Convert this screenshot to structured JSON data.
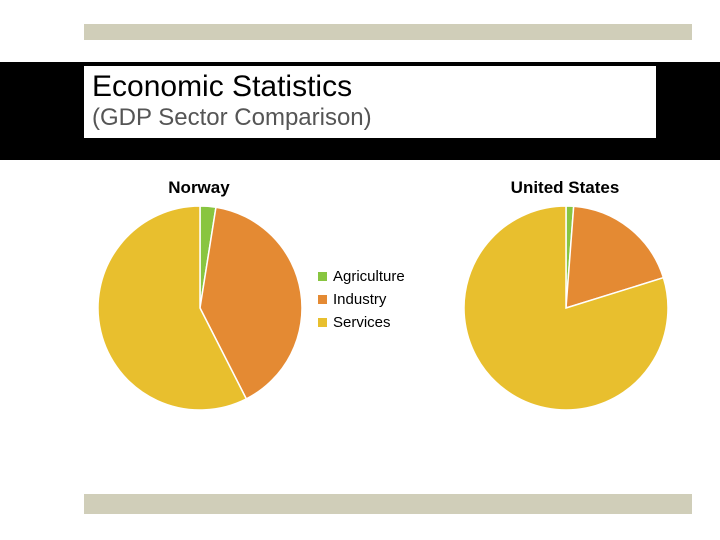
{
  "title": {
    "main": "Economic Statistics",
    "sub": "(GDP Sector Comparison)"
  },
  "legend": {
    "items": [
      {
        "label": "Agriculture",
        "color": "#88c540"
      },
      {
        "label": "Industry",
        "color": "#e48a33"
      },
      {
        "label": "Services",
        "color": "#e8bf2e"
      }
    ]
  },
  "charts": {
    "norway": {
      "title": "Norway",
      "type": "pie",
      "radius": 102,
      "sectors": [
        {
          "label": "Agriculture",
          "value": 2.5,
          "color": "#88c540"
        },
        {
          "label": "Industry",
          "value": 40.0,
          "color": "#e48a33"
        },
        {
          "label": "Services",
          "value": 57.5,
          "color": "#e8bf2e"
        }
      ],
      "stroke": "#ffffff",
      "stroke_width": 1.5
    },
    "united_states": {
      "title": "United States",
      "type": "pie",
      "radius": 102,
      "sectors": [
        {
          "label": "Agriculture",
          "value": 1.2,
          "color": "#88c540"
        },
        {
          "label": "Industry",
          "value": 19.0,
          "color": "#e48a33"
        },
        {
          "label": "Services",
          "value": 79.8,
          "color": "#e8bf2e"
        }
      ],
      "stroke": "#ffffff",
      "stroke_width": 1.5
    }
  },
  "decor": {
    "bar_color": "#d0ceb9",
    "band_color": "#000000"
  }
}
